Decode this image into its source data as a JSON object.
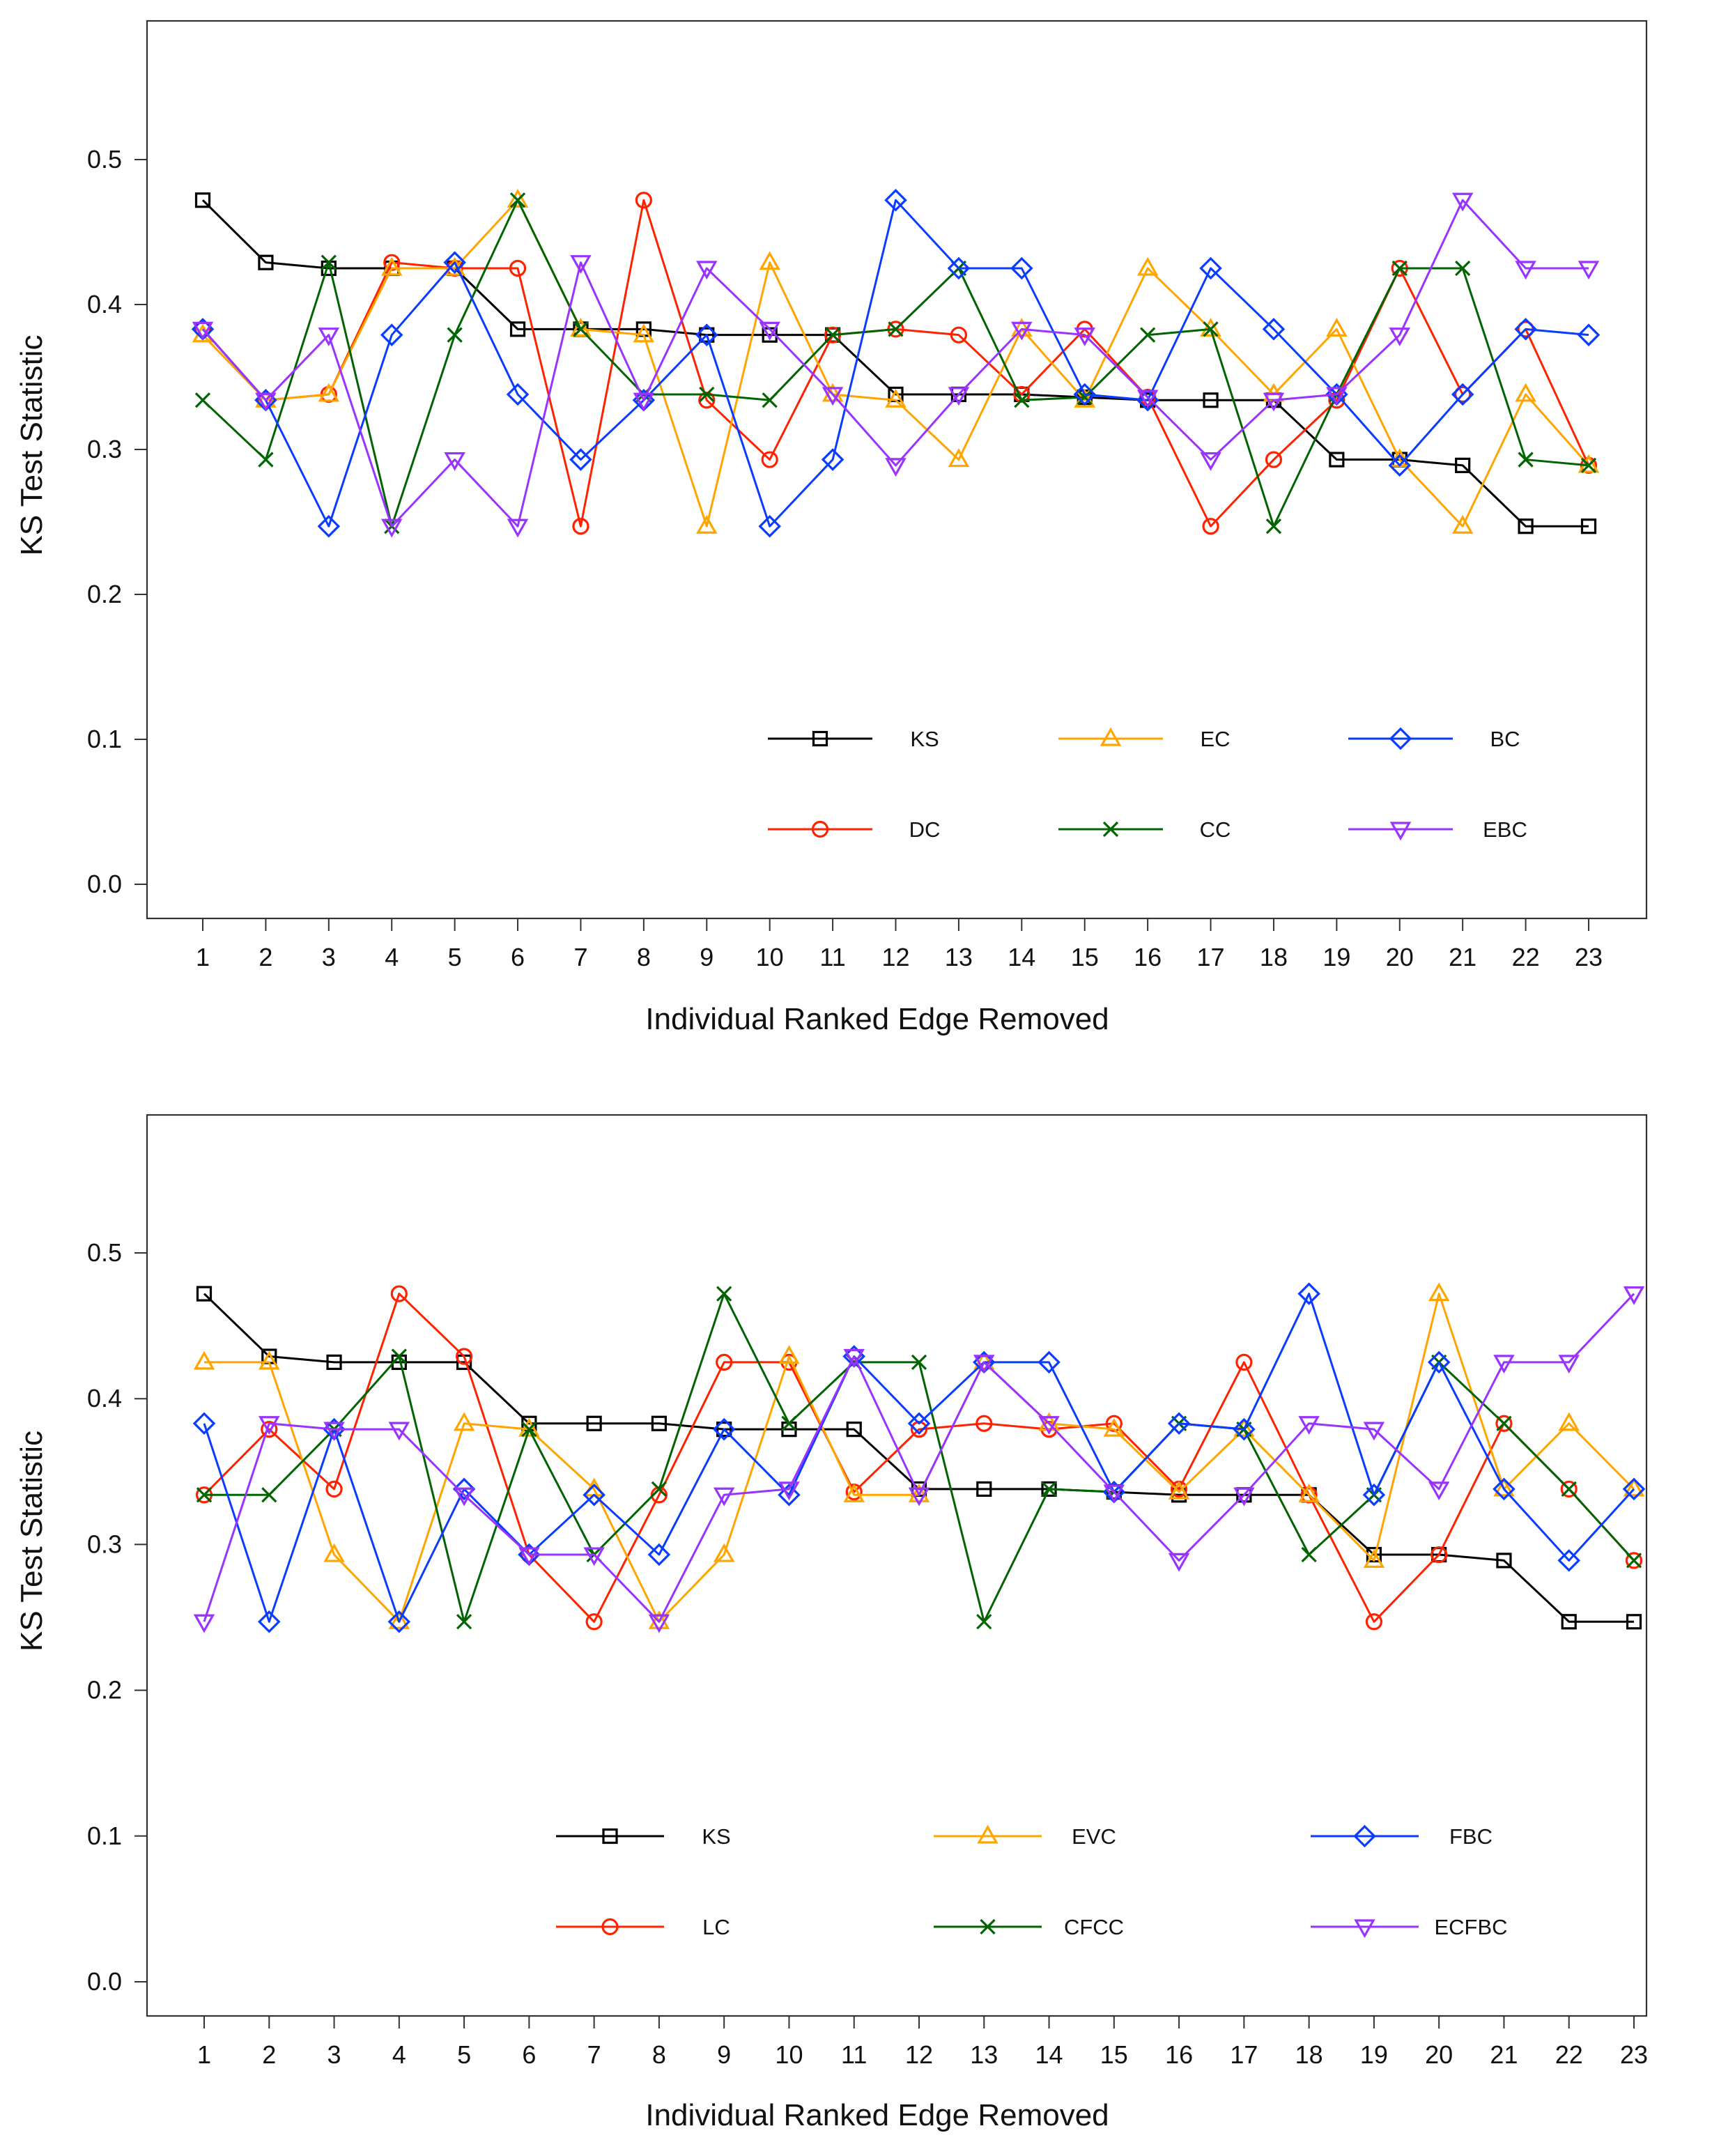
{
  "chart_data": [
    {
      "type": "line",
      "xlabel": "Individual Ranked Edge Removed",
      "ylabel": "KS Test Statistic",
      "xlim": [
        1,
        23
      ],
      "ylim": [
        0.0,
        0.5
      ],
      "x": [
        1,
        2,
        3,
        4,
        5,
        6,
        7,
        8,
        9,
        10,
        11,
        12,
        13,
        14,
        15,
        16,
        17,
        18,
        19,
        20,
        21,
        22,
        23
      ],
      "x_ticks": [
        "1",
        "2",
        "3",
        "4",
        "5",
        "6",
        "7",
        "8",
        "9",
        "10",
        "11",
        "12",
        "13",
        "14",
        "15",
        "16",
        "17",
        "18",
        "19",
        "20",
        "21",
        "22",
        "23"
      ],
      "y_ticks": [
        "0.0",
        "0.1",
        "0.2",
        "0.3",
        "0.4",
        "0.5"
      ],
      "grid": false,
      "legend_position": "bottom-right",
      "series": [
        {
          "name": "KS",
          "color": "#000000",
          "marker": "square",
          "values": [
            0.472,
            0.429,
            0.425,
            0.425,
            0.425,
            0.383,
            0.383,
            0.383,
            0.379,
            0.379,
            0.379,
            0.338,
            0.338,
            0.338,
            0.336,
            0.334,
            0.334,
            0.334,
            0.293,
            0.293,
            0.289,
            0.247,
            0.247
          ]
        },
        {
          "name": "DC",
          "color": "#ff2200",
          "marker": "circle",
          "values": [
            0.383,
            0.334,
            0.338,
            0.429,
            0.425,
            0.425,
            0.247,
            0.472,
            0.334,
            0.293,
            0.379,
            0.383,
            0.379,
            0.338,
            0.383,
            0.336,
            0.247,
            0.293,
            0.334,
            0.425,
            0.338,
            0.383,
            0.289
          ]
        },
        {
          "name": "EC",
          "color": "#ffa500",
          "marker": "triangle-up",
          "values": [
            0.379,
            0.334,
            0.338,
            0.425,
            0.425,
            0.472,
            0.383,
            0.379,
            0.247,
            0.429,
            0.338,
            0.334,
            0.293,
            0.383,
            0.334,
            0.425,
            0.383,
            0.338,
            0.383,
            0.293,
            0.247,
            0.338,
            0.289
          ]
        },
        {
          "name": "CC",
          "color": "#006400",
          "marker": "x",
          "values": [
            0.334,
            0.293,
            0.429,
            0.247,
            0.379,
            0.472,
            0.383,
            0.338,
            0.338,
            0.334,
            0.379,
            0.383,
            0.425,
            0.334,
            0.336,
            0.379,
            0.383,
            0.247,
            0.338,
            0.425,
            0.425,
            0.293,
            0.289
          ]
        },
        {
          "name": "BC",
          "color": "#0a3cff",
          "marker": "diamond",
          "values": [
            0.383,
            0.334,
            0.247,
            0.379,
            0.429,
            0.338,
            0.293,
            0.334,
            0.379,
            0.247,
            0.293,
            0.472,
            0.425,
            0.425,
            0.338,
            0.334,
            0.425,
            0.383,
            0.338,
            0.289,
            0.338,
            0.383,
            0.379
          ]
        },
        {
          "name": "EBC",
          "color": "#9933ff",
          "marker": "triangle-down",
          "values": [
            0.383,
            0.334,
            0.379,
            0.247,
            0.293,
            0.247,
            0.429,
            0.334,
            0.425,
            0.383,
            0.338,
            0.289,
            0.338,
            0.383,
            0.379,
            0.336,
            0.293,
            0.334,
            0.338,
            0.379,
            0.472,
            0.425,
            0.425
          ]
        }
      ]
    },
    {
      "type": "line",
      "xlabel": "Individual Ranked Edge Removed",
      "ylabel": "KS Test Statistic",
      "xlim": [
        1,
        23
      ],
      "ylim": [
        0.0,
        0.5
      ],
      "x": [
        1,
        2,
        3,
        4,
        5,
        6,
        7,
        8,
        9,
        10,
        11,
        12,
        13,
        14,
        15,
        16,
        17,
        18,
        19,
        20,
        21,
        22,
        23
      ],
      "x_ticks": [
        "1",
        "2",
        "3",
        "4",
        "5",
        "6",
        "7",
        "8",
        "9",
        "10",
        "11",
        "12",
        "13",
        "14",
        "15",
        "16",
        "17",
        "18",
        "19",
        "20",
        "21",
        "22",
        "23"
      ],
      "y_ticks": [
        "0.0",
        "0.1",
        "0.2",
        "0.3",
        "0.4",
        "0.5"
      ],
      "grid": false,
      "legend_position": "bottom",
      "series": [
        {
          "name": "KS",
          "color": "#000000",
          "marker": "square",
          "values": [
            0.472,
            0.429,
            0.425,
            0.425,
            0.425,
            0.383,
            0.383,
            0.383,
            0.379,
            0.379,
            0.379,
            0.338,
            0.338,
            0.338,
            0.336,
            0.334,
            0.334,
            0.334,
            0.293,
            0.293,
            0.289,
            0.247,
            0.247
          ]
        },
        {
          "name": "LC",
          "color": "#ff2200",
          "marker": "circle",
          "values": [
            0.334,
            0.379,
            0.338,
            0.472,
            0.429,
            0.293,
            0.247,
            0.334,
            0.425,
            0.425,
            0.336,
            0.379,
            0.383,
            0.379,
            0.383,
            0.338,
            0.425,
            0.334,
            0.247,
            0.293,
            0.383,
            0.338,
            0.289
          ]
        },
        {
          "name": "EVC",
          "color": "#ffa500",
          "marker": "triangle-up",
          "values": [
            0.425,
            0.425,
            0.293,
            0.247,
            0.383,
            0.379,
            0.338,
            0.247,
            0.293,
            0.429,
            0.334,
            0.334,
            0.425,
            0.383,
            0.379,
            0.336,
            0.379,
            0.334,
            0.289,
            0.472,
            0.338,
            0.383,
            0.338
          ]
        },
        {
          "name": "CFCC",
          "color": "#006400",
          "marker": "x",
          "values": [
            0.334,
            0.334,
            0.379,
            0.429,
            0.247,
            0.379,
            0.293,
            0.338,
            0.472,
            0.383,
            0.425,
            0.425,
            0.247,
            0.338,
            0.336,
            0.383,
            0.379,
            0.293,
            0.334,
            0.425,
            0.383,
            0.338,
            0.289
          ]
        },
        {
          "name": "FBC",
          "color": "#0a3cff",
          "marker": "diamond",
          "values": [
            0.383,
            0.247,
            0.379,
            0.247,
            0.338,
            0.293,
            0.334,
            0.293,
            0.379,
            0.334,
            0.429,
            0.383,
            0.425,
            0.425,
            0.336,
            0.383,
            0.379,
            0.472,
            0.334,
            0.425,
            0.338,
            0.289,
            0.338
          ]
        },
        {
          "name": "ECFBC",
          "color": "#9933ff",
          "marker": "triangle-down",
          "values": [
            0.247,
            0.383,
            0.379,
            0.379,
            0.334,
            0.293,
            0.293,
            0.247,
            0.334,
            0.338,
            0.429,
            0.334,
            0.425,
            0.383,
            0.336,
            0.289,
            0.334,
            0.383,
            0.379,
            0.338,
            0.425,
            0.425,
            0.472
          ]
        }
      ]
    }
  ]
}
